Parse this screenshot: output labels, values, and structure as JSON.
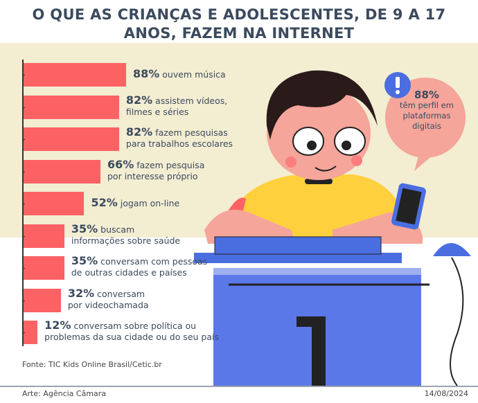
{
  "title": [
    "O QUE AS CRIANÇAS E ADOLESCENTES, DE 9 A 17",
    "ANOS, FAZEM NA INTERNET"
  ],
  "chart_data": {
    "type": "bar",
    "orientation": "horizontal",
    "unit": "%",
    "xlim": [
      0,
      100
    ],
    "bar_color": "#fc6264",
    "items": [
      {
        "value": 88,
        "pct": "88%",
        "l1": "ouvem música",
        "l2": ""
      },
      {
        "value": 82,
        "pct": "82%",
        "l1": "assistem vídeos,",
        "l2": "filmes e séries"
      },
      {
        "value": 82,
        "pct": "82%",
        "l1": "fazem pesquisas",
        "l2": "para trabalhos escolares"
      },
      {
        "value": 66,
        "pct": "66%",
        "l1": "fazem pesquisa",
        "l2": "por interesse próprio"
      },
      {
        "value": 52,
        "pct": "52%",
        "l1": "jogam on-line",
        "l2": ""
      },
      {
        "value": 35,
        "pct": "35%",
        "l1": "buscam",
        "l2": "informações sobre saúde"
      },
      {
        "value": 35,
        "pct": "35%",
        "l1": "conversam com pessoas",
        "l2": "de outras cidades e países"
      },
      {
        "value": 32,
        "pct": "32%",
        "l1": "conversam",
        "l2": "por videochamada"
      },
      {
        "value": 12,
        "pct": "12%",
        "l1": "conversam sobre política ou",
        "l2": "problemas da sua cidade ou do seu país"
      }
    ]
  },
  "bubble": {
    "pct": "88%",
    "text": "têm perfil em plataformas digitais",
    "icon": "exclamation-icon"
  },
  "source": "Fonte: TIC Kids Online Brasil/Cetic.br",
  "credit": "Arte: Agência Câmara",
  "date": "14/08/2024"
}
